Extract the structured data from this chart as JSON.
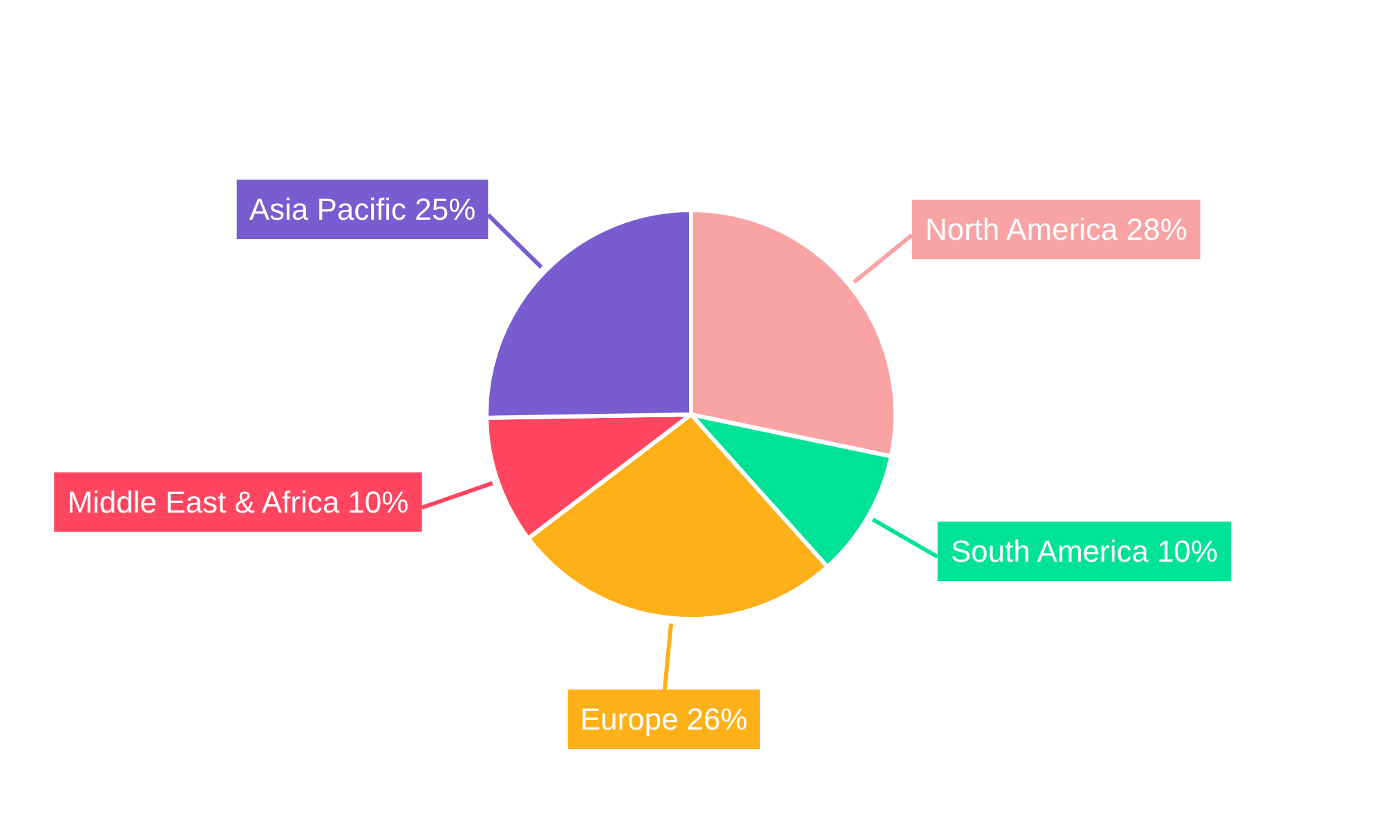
{
  "chart_data": {
    "type": "pie",
    "categories": [
      "North America",
      "South America",
      "Europe",
      "Middle East & Africa",
      "Asia Pacific"
    ],
    "values": [
      28,
      10,
      26,
      10,
      25
    ],
    "value_labels": [
      "28%",
      "10%",
      "26%",
      "10%",
      "25%"
    ],
    "colors": [
      "#f9a3a4",
      "#00e396",
      "#feb019",
      "#ff4560",
      "#775dd0"
    ]
  }
}
